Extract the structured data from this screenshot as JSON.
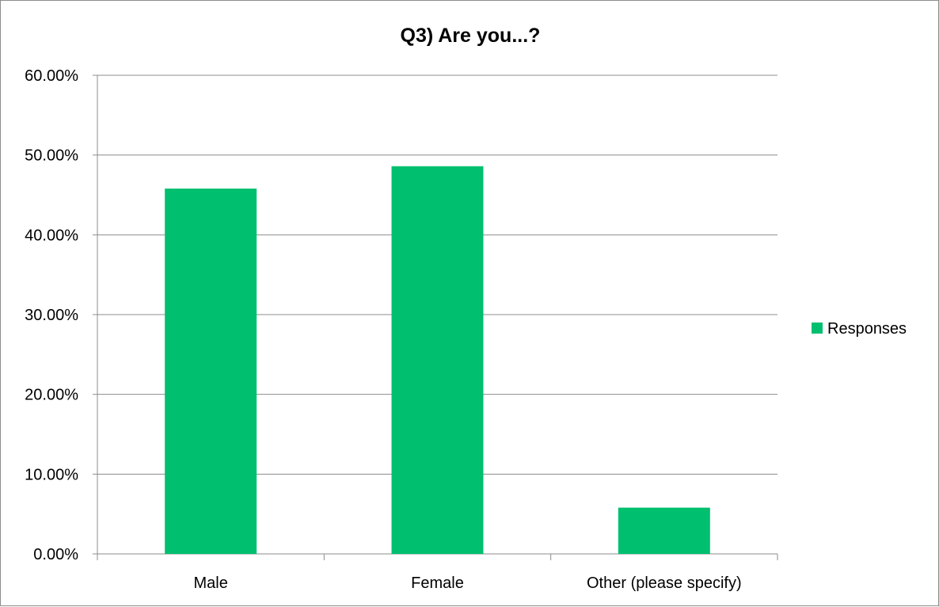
{
  "chart_data": {
    "type": "bar",
    "title": "Q3) Are you...?",
    "xlabel": "",
    "ylabel": "",
    "categories": [
      "Male",
      "Female",
      "Other (please specify)"
    ],
    "series": [
      {
        "name": "Responses",
        "values": [
          45.8,
          48.6,
          5.8
        ],
        "color": "#00bf6f"
      }
    ],
    "ylim": [
      0,
      60
    ],
    "yticks": [
      0,
      10,
      20,
      30,
      40,
      50,
      60
    ],
    "ytick_labels": [
      "0.00%",
      "10.00%",
      "20.00%",
      "30.00%",
      "40.00%",
      "50.00%",
      "60.00%"
    ],
    "grid": true,
    "legend_position": "right"
  }
}
